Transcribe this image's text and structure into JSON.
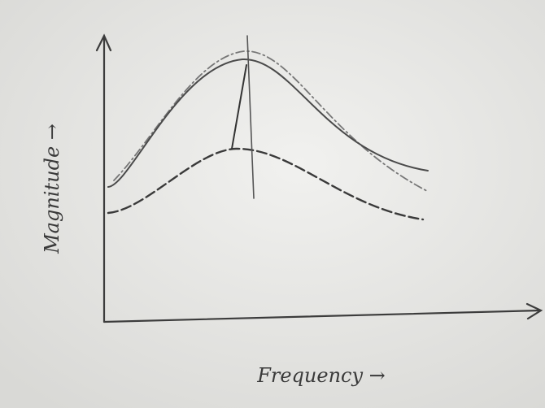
{
  "labels": {
    "y_axis": "Magnitude →",
    "x_axis": "Frequency →"
  }
}
